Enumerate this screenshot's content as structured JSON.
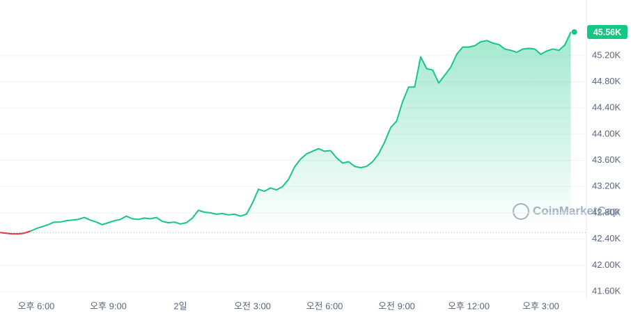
{
  "chart_data": {
    "type": "line",
    "watermark": "CoinMarketCap",
    "categories": [
      null,
      null,
      null,
      null,
      null,
      null,
      "오후 6:00",
      null,
      null,
      null,
      null,
      null,
      null,
      null,
      null,
      null,
      null,
      null,
      "오후 9:00",
      null,
      null,
      null,
      null,
      null,
      null,
      null,
      null,
      null,
      null,
      null,
      "2일",
      null,
      null,
      null,
      null,
      null,
      null,
      null,
      null,
      null,
      null,
      null,
      "오전 3:00",
      null,
      null,
      null,
      null,
      null,
      null,
      null,
      null,
      null,
      null,
      null,
      "오전 6:00",
      null,
      null,
      null,
      null,
      null,
      null,
      null,
      null,
      null,
      null,
      null,
      "오전 9:00",
      null,
      null,
      null,
      null,
      null,
      null,
      null,
      null,
      null,
      null,
      null,
      "오후 12:00",
      null,
      null,
      null,
      null,
      null,
      null,
      null,
      null,
      null,
      null,
      null,
      "오후 3:00",
      null,
      null,
      null,
      null,
      null
    ],
    "series": [
      {
        "color": "#16c784",
        "down_color": "#ea3943",
        "values": [
          42500,
          42490,
          42480,
          42480,
          42490,
          42520,
          42560,
          42590,
          42620,
          42660,
          42660,
          42680,
          42690,
          42700,
          42730,
          42690,
          42660,
          42620,
          42650,
          42680,
          42700,
          42750,
          42710,
          42700,
          42720,
          42710,
          42730,
          42670,
          42650,
          42660,
          42630,
          42650,
          42720,
          42840,
          42810,
          42800,
          42780,
          42790,
          42770,
          42780,
          42750,
          42780,
          42950,
          43160,
          43130,
          43180,
          43150,
          43200,
          43310,
          43500,
          43620,
          43700,
          43740,
          43780,
          43740,
          43750,
          43640,
          43560,
          43580,
          43510,
          43490,
          43510,
          43580,
          43700,
          43880,
          44100,
          44200,
          44500,
          44720,
          44720,
          45180,
          45000,
          44980,
          44780,
          44900,
          45020,
          45220,
          45330,
          45330,
          45350,
          45410,
          45430,
          45390,
          45370,
          45300,
          45280,
          45250,
          45300,
          45310,
          45300,
          45220,
          45270,
          45300,
          45280,
          45360,
          45560
        ],
        "last_label": "45.56K"
      }
    ],
    "reference_line": 42500,
    "ylim": [
      41400,
      46000
    ],
    "yticks": [
      {
        "value": 41600,
        "label": "41.60K"
      },
      {
        "value": 42000,
        "label": "42.00K"
      },
      {
        "value": 42400,
        "label": "42.40K"
      },
      {
        "value": 42800,
        "label": "42.80K"
      },
      {
        "value": 43200,
        "label": "43.20K"
      },
      {
        "value": 43600,
        "label": "43.60K"
      },
      {
        "value": 44000,
        "label": "44.00K"
      },
      {
        "value": 44400,
        "label": "44.40K"
      },
      {
        "value": 44800,
        "label": "44.80K"
      },
      {
        "value": 45200,
        "label": "45.20K"
      }
    ],
    "grid": true
  }
}
